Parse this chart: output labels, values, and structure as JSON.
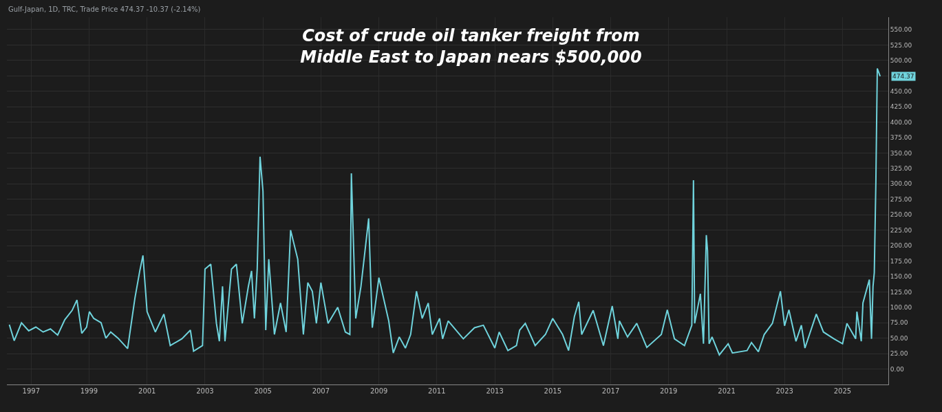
{
  "chart_data": {
    "type": "line",
    "title": "Cost of crude oil tanker freight from\nMiddle East to Japan nears $500,000",
    "annotations": [
      "Gulf-Japan, 1D, TRC, Trade Price 474.37 -10.37 (-2.14%)",
      "474.37"
    ],
    "x": [
      "1996-04-01",
      "1996-06-01",
      "1996-09-01",
      "1996-12-01",
      "1997-03-01",
      "1997-06-01",
      "1997-09-01",
      "1997-12-01",
      "1998-03-01",
      "1998-06-01",
      "1998-08-01",
      "1998-10-01",
      "1998-12-01",
      "1999-01-05",
      "1999-03-01",
      "1999-06-01",
      "1999-08-01",
      "1999-10-01",
      "2000-01-01",
      "2000-05-01",
      "2000-08-01",
      "2000-10-01",
      "2000-11-10",
      "2001-01-01",
      "2001-04-15",
      "2001-08-01",
      "2001-10-20",
      "2002-03-15",
      "2002-07-01",
      "2002-08-10",
      "2002-12-01",
      "2003-01-01",
      "2003-03-15",
      "2003-05-25",
      "2003-07-01",
      "2003-08-10",
      "2003-09-10",
      "2003-12-01",
      "2004-02-01",
      "2004-04-15",
      "2004-07-01",
      "2004-08-10",
      "2004-09-15",
      "2004-10-20",
      "2004-11-25",
      "2005-01-01",
      "2005-02-05",
      "2005-03-15",
      "2005-05-25",
      "2005-08-10",
      "2005-10-20",
      "2005-12-15",
      "2006-03-15",
      "2006-05-25",
      "2006-07-20",
      "2006-09-15",
      "2006-11-05",
      "2007-01-01",
      "2007-04-01",
      "2007-08-01",
      "2007-11-05",
      "2008-01-01",
      "2008-01-20",
      "2008-03-15",
      "2008-05-20",
      "2008-07-20",
      "2008-08-25",
      "2008-10-10",
      "2009-01-01",
      "2009-05-05",
      "2009-07-01",
      "2009-09-15",
      "2009-12-01",
      "2010-02-05",
      "2010-04-20",
      "2010-07-01",
      "2010-09-15",
      "2010-11-05",
      "2011-02-05",
      "2011-03-15",
      "2011-05-25",
      "2011-12-01",
      "2012-04-20",
      "2012-08-10",
      "2013-01-01",
      "2013-02-25",
      "2013-06-15",
      "2013-10-01",
      "2013-11-10",
      "2014-01-20",
      "2014-05-25",
      "2014-10-01",
      "2015-01-01",
      "2015-05-05",
      "2015-07-20",
      "2015-10-01",
      "2015-11-25",
      "2016-01-01",
      "2016-05-25",
      "2016-10-01",
      "2017-01-20",
      "2017-04-01",
      "2017-04-20",
      "2017-08-01",
      "2017-11-25",
      "2018-04-01",
      "2018-10-01",
      "2018-12-15",
      "2019-03-15",
      "2019-07-20",
      "2019-10-20",
      "2019-11-10",
      "2019-11-25",
      "2020-02-05",
      "2020-03-15",
      "2020-04-20",
      "2020-05-05",
      "2020-05-25",
      "2020-07-01",
      "2020-10-01",
      "2021-01-20",
      "2021-03-15",
      "2021-09-15",
      "2021-11-10",
      "2022-02-05",
      "2022-04-20",
      "2022-08-01",
      "2022-11-10",
      "2023-01-01",
      "2023-02-25",
      "2023-05-25",
      "2023-08-01",
      "2023-09-15",
      "2024-02-05",
      "2024-05-05",
      "2024-09-15",
      "2025-01-01",
      "2025-02-25",
      "2025-06-15",
      "2025-07-01",
      "2025-08-25",
      "2025-09-15",
      "2025-12-05",
      "2026-01-01",
      "2026-01-20",
      "2026-02-05",
      "2026-02-25",
      "2026-03-15",
      "2026-04-20"
    ],
    "series": [
      {
        "color": "#6fd3dc",
        "values": [
          72,
          46,
          75,
          62,
          68,
          60,
          65,
          55,
          80,
          95,
          112,
          58,
          68,
          93,
          82,
          75,
          50,
          60,
          50,
          33,
          115,
          159,
          184,
          93,
          60,
          89,
          38,
          49,
          63,
          29,
          38,
          162,
          170,
          74,
          45,
          134,
          45,
          162,
          170,
          74,
          134,
          159,
          82,
          162,
          344,
          288,
          63,
          178,
          56,
          107,
          60,
          225,
          178,
          56,
          140,
          126,
          74,
          140,
          74,
          100,
          60,
          56,
          317,
          82,
          134,
          203,
          244,
          67,
          148,
          78,
          26,
          52,
          34,
          56,
          126,
          82,
          107,
          56,
          82,
          49,
          78,
          49,
          67,
          71,
          34,
          60,
          30,
          38,
          63,
          74,
          38,
          56,
          82,
          56,
          30,
          85,
          109,
          56,
          95,
          38,
          102,
          49,
          78,
          52,
          74,
          35,
          56,
          96,
          49,
          38,
          71,
          306,
          74,
          122,
          41,
          217,
          192,
          41,
          52,
          23,
          41,
          26,
          30,
          43,
          28,
          56,
          74,
          126,
          70,
          96,
          45,
          71,
          34,
          89,
          60,
          49,
          41,
          74,
          49,
          93,
          45,
          107,
          145,
          49,
          134,
          156,
          303,
          487,
          474.37
        ]
      }
    ],
    "xlim": [
      "1996-03-01",
      "2026-08-01"
    ],
    "xticks": [
      {
        "value": "1997-01-01",
        "label": "1997"
      },
      {
        "value": "1999-01-01",
        "label": "1999"
      },
      {
        "value": "2001-01-01",
        "label": "2001"
      },
      {
        "value": "2003-01-01",
        "label": "2003"
      },
      {
        "value": "2005-01-01",
        "label": "2005"
      },
      {
        "value": "2007-01-01",
        "label": "2007"
      },
      {
        "value": "2009-01-01",
        "label": "2009"
      },
      {
        "value": "2011-01-01",
        "label": "2011"
      },
      {
        "value": "2013-01-01",
        "label": "2013"
      },
      {
        "value": "2015-01-01",
        "label": "2015"
      },
      {
        "value": "2017-01-01",
        "label": "2017"
      },
      {
        "value": "2019-01-01",
        "label": "2019"
      },
      {
        "value": "2021-01-01",
        "label": "2021"
      },
      {
        "value": "2023-01-01",
        "label": "2023"
      },
      {
        "value": "2025-01-01",
        "label": "2025"
      }
    ],
    "ylim": [
      -25,
      570
    ],
    "yticks": [
      {
        "value": 0,
        "label": "0.00"
      },
      {
        "value": 25,
        "label": "25.00"
      },
      {
        "value": 50,
        "label": "50.00"
      },
      {
        "value": 75,
        "label": "75.00"
      },
      {
        "value": 100,
        "label": "100.00"
      },
      {
        "value": 125,
        "label": "125.00"
      },
      {
        "value": 150,
        "label": "150.00"
      },
      {
        "value": 175,
        "label": "175.00"
      },
      {
        "value": 200,
        "label": "200.00"
      },
      {
        "value": 225,
        "label": "225.00"
      },
      {
        "value": 250,
        "label": "250.00"
      },
      {
        "value": 275,
        "label": "275.00"
      },
      {
        "value": 300,
        "label": "300.00"
      },
      {
        "value": 325,
        "label": "325.00"
      },
      {
        "value": 350,
        "label": "350.00"
      },
      {
        "value": 375,
        "label": "375.00"
      },
      {
        "value": 400,
        "label": "400.00"
      },
      {
        "value": 425,
        "label": "425.00"
      },
      {
        "value": 450,
        "label": "450.00"
      },
      {
        "value": 475,
        "label": null
      },
      {
        "value": 500,
        "label": "500.00"
      },
      {
        "value": 525,
        "label": "525.00"
      },
      {
        "value": 550,
        "label": "550.00"
      }
    ],
    "grid": true
  }
}
